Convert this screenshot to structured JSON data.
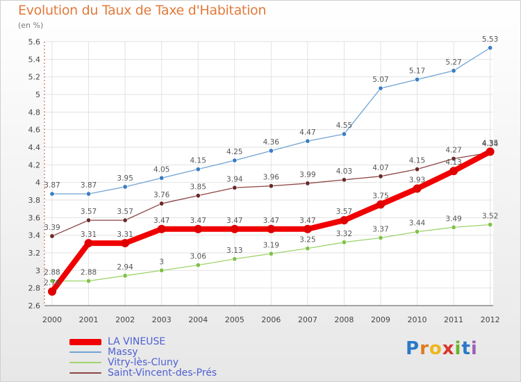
{
  "title": "Evolution du Taux de Taxe d'Habitation",
  "unit_label": "(en %)",
  "logo": {
    "letters": [
      "P",
      "r",
      "o",
      "x",
      "i",
      "t",
      "i"
    ],
    "colors": [
      "#2a78c8",
      "#e07a1f",
      "#f0b61e",
      "#d9362c",
      "#6ab42d",
      "#2a78c8",
      "#9b5fb5"
    ]
  },
  "chart_data": {
    "type": "line",
    "title": "Evolution du Taux de Taxe d'Habitation",
    "ylabel": "(en %)",
    "xlabel": "",
    "ylim": [
      2.6,
      5.6
    ],
    "yticks": [
      2.6,
      2.8,
      3,
      3.2,
      3.4,
      3.6,
      3.8,
      4,
      4.2,
      4.4,
      4.6,
      4.8,
      5,
      5.2,
      5.4,
      5.6
    ],
    "ytick_labels": [
      "2.6",
      "2.8",
      "3",
      "3.2",
      "3.4",
      "3.6",
      "3.8",
      "4",
      "4.2",
      "4.4",
      "4.6",
      "4.8",
      "5",
      "5.2",
      "5.4",
      "5.6"
    ],
    "grid": true,
    "legend_position": "bottom-left",
    "categories": [
      "2000",
      "2001",
      "2002",
      "2003",
      "2004",
      "2005",
      "2006",
      "2007",
      "2008",
      "2009",
      "2010",
      "2011",
      "2012"
    ],
    "series": [
      {
        "name": "Massy",
        "color": "#6fa3d3",
        "marker": "#3b7dc4",
        "width": 1.3,
        "values": [
          3.87,
          3.87,
          3.95,
          4.05,
          4.15,
          4.25,
          4.36,
          4.47,
          4.55,
          5.07,
          5.17,
          5.27,
          5.53
        ],
        "labels": [
          "3.87",
          "3.87",
          "3.95",
          "4.05",
          "4.15",
          "4.25",
          "4.36",
          "4.47",
          "4.55",
          "5.07",
          "5.17",
          "5.27",
          "5.53"
        ]
      },
      {
        "name": "Saint-Vincent-des-Prés",
        "color": "#8c4444",
        "marker": "#6a2828",
        "width": 1.3,
        "values": [
          3.39,
          3.57,
          3.57,
          3.76,
          3.85,
          3.94,
          3.96,
          3.99,
          4.03,
          4.07,
          4.15,
          4.27,
          4.34
        ],
        "labels": [
          "3.39",
          "3.57",
          "3.57",
          "3.76",
          "3.85",
          "3.94",
          "3.96",
          "3.99",
          "4.03",
          "4.07",
          "4.15",
          "4.27",
          "4.34"
        ]
      },
      {
        "name": "Vitry-lès-Cluny",
        "color": "#9ed36a",
        "marker": "#7fc24a",
        "width": 1.3,
        "values": [
          2.88,
          2.88,
          2.94,
          3.0,
          3.06,
          3.13,
          3.19,
          3.25,
          3.32,
          3.37,
          3.44,
          3.49,
          3.52
        ],
        "labels": [
          "2.88",
          "2.88",
          "2.94",
          "3",
          "3.06",
          "3.13",
          "3.19",
          "3.25",
          "3.32",
          "3.37",
          "3.44",
          "3.49",
          "3.52"
        ]
      },
      {
        "name": "LA VINEUSE",
        "color": "#f00000",
        "marker": "#e00000",
        "width": 8,
        "values": [
          2.76,
          3.31,
          3.31,
          3.47,
          3.47,
          3.47,
          3.47,
          3.47,
          3.57,
          3.75,
          3.93,
          4.13,
          4.35
        ],
        "labels": [
          "2.76",
          "3.31",
          "3.31",
          "3.47",
          "3.47",
          "3.47",
          "3.47",
          "3.47",
          "3.57",
          "3.75",
          "3.93",
          "4.13",
          "4.35"
        ]
      }
    ],
    "legend": [
      {
        "name": "LA VINEUSE",
        "color": "#f00000",
        "thick": true
      },
      {
        "name": "Massy",
        "color": "#6fa3d3",
        "thick": false
      },
      {
        "name": "Vitry-lès-Cluny",
        "color": "#9ed36a",
        "thick": false
      },
      {
        "name": "Saint-Vincent-des-Prés",
        "color": "#8c4444",
        "thick": false
      }
    ]
  }
}
